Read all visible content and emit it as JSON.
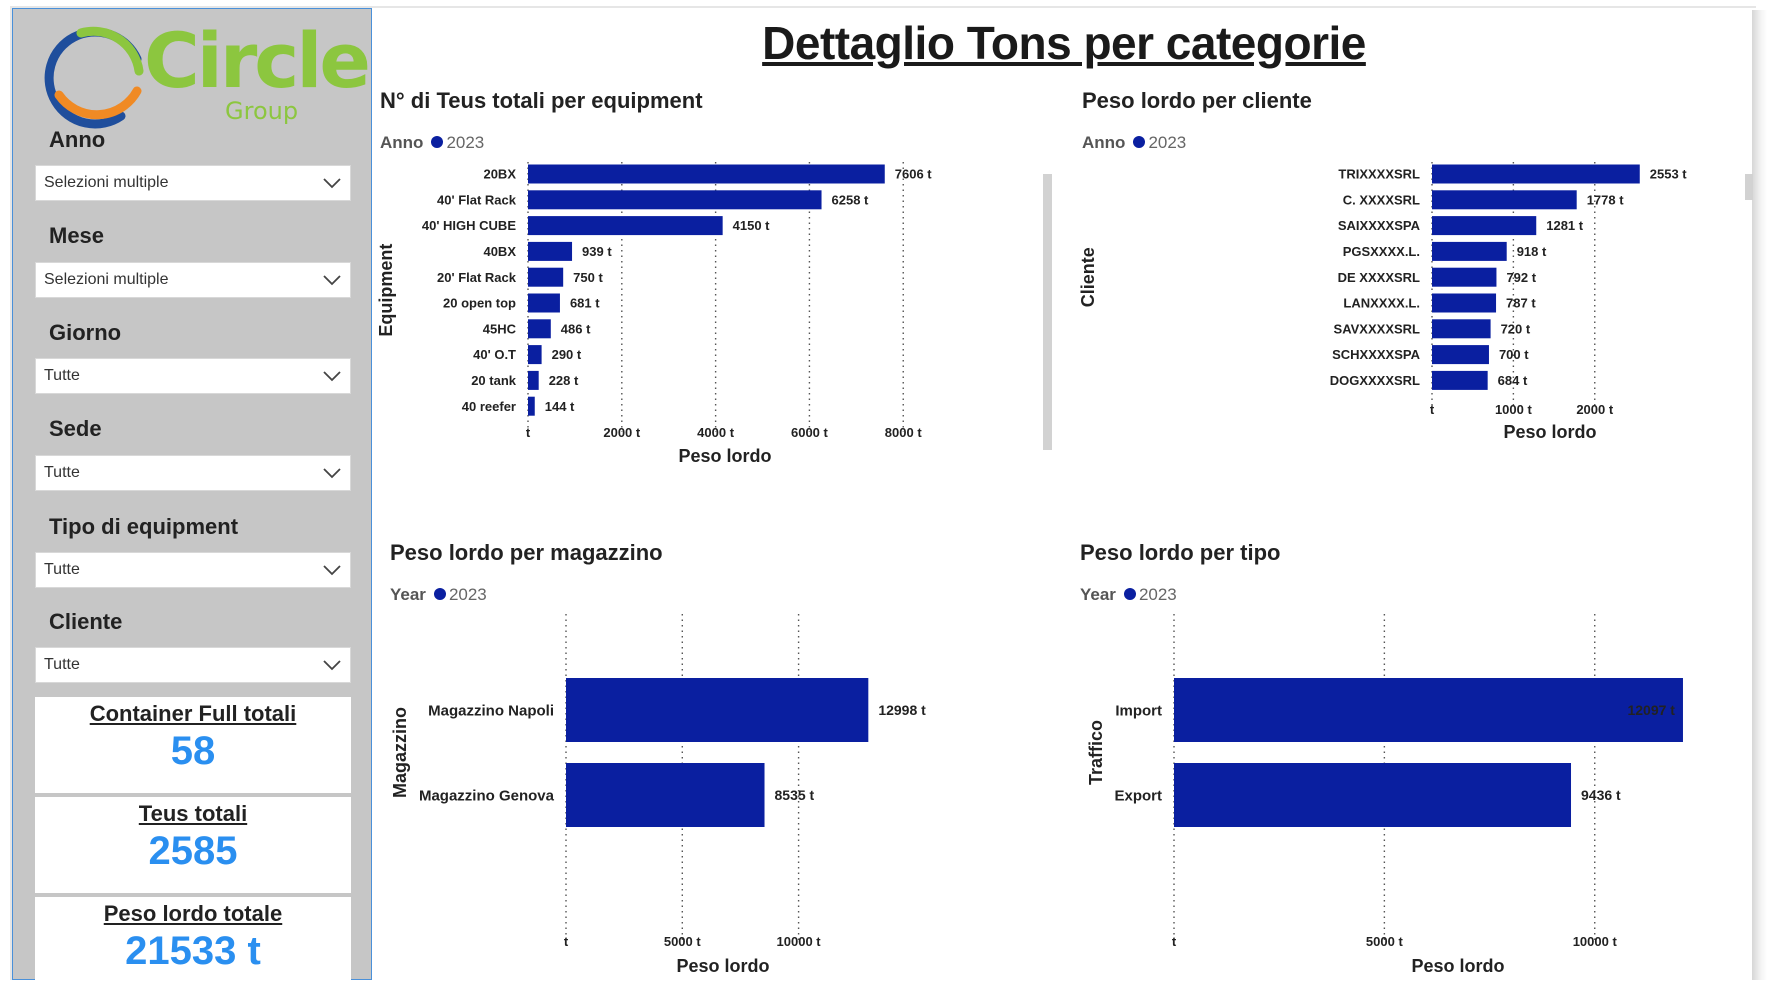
{
  "logo": {
    "name": "Circle",
    "sub": "Group"
  },
  "page_title": "Dettaglio Tons per categorie",
  "filters": [
    {
      "label": "Anno",
      "value": "Selezioni multiple"
    },
    {
      "label": "Mese",
      "value": "Selezioni multiple"
    },
    {
      "label": "Giorno",
      "value": "Tutte"
    },
    {
      "label": "Sede",
      "value": "Tutte"
    },
    {
      "label": "Tipo di equipment",
      "value": "Tutte"
    },
    {
      "label": "Cliente",
      "value": "Tutte"
    }
  ],
  "cards": [
    {
      "title": "Container Full totali",
      "value": "58"
    },
    {
      "title": "Teus totali",
      "value": "2585"
    },
    {
      "title": "Peso lordo totale",
      "value": "21533 t"
    }
  ],
  "colors": {
    "bar": "#0a1fa0",
    "card_value": "#2a8ff0",
    "sidebar": "#c6c6c6"
  },
  "chart_data": [
    {
      "type": "bar",
      "orientation": "horizontal",
      "title": "N° di Teus totali per equipment",
      "legend": {
        "label": "Anno",
        "entries": [
          "2023"
        ],
        "placement": "top-left"
      },
      "categories": [
        "20BX",
        "40' Flat Rack",
        "40' HIGH CUBE",
        "40BX",
        "20' Flat Rack",
        "20 open top",
        "45HC",
        "40' O.T",
        "20 tank",
        "40 reefer"
      ],
      "series": [
        {
          "name": "2023",
          "values": [
            7606,
            6258,
            4150,
            939,
            750,
            681,
            486,
            290,
            228,
            144
          ]
        }
      ],
      "data_labels": [
        "7606 t",
        "6258 t",
        "4150 t",
        "939 t",
        "750 t",
        "681 t",
        "486 t",
        "290 t",
        "228 t",
        "144 t"
      ],
      "xlabel": "Peso lordo",
      "ylabel": "Equipment",
      "xticks": [
        0,
        2000,
        4000,
        6000,
        8000
      ],
      "xtick_labels": [
        "t",
        "2000 t",
        "4000 t",
        "6000 t",
        "8000 t"
      ],
      "xlim": [
        0,
        8400
      ],
      "grid": "vertical dotted"
    },
    {
      "type": "bar",
      "orientation": "horizontal",
      "title": "Peso lordo per cliente",
      "legend": {
        "label": "Anno",
        "entries": [
          "2023"
        ],
        "placement": "top-left"
      },
      "categories": [
        "TRIXXXXSRL",
        "C. XXXXSRL",
        "SAIXXXXSPA",
        "PGSXXXX.L.",
        "DE XXXXSRL",
        "LANXXXX.L.",
        "SAVXXXXSRL",
        "SCHXXXXSPA",
        "DOGXXXXSRL"
      ],
      "series": [
        {
          "name": "2023",
          "values": [
            2553,
            1778,
            1281,
            918,
            792,
            787,
            720,
            700,
            684
          ]
        }
      ],
      "data_labels": [
        "2553 t",
        "1778 t",
        "1281 t",
        "918 t",
        "792 t",
        "787 t",
        "720 t",
        "700 t",
        "684 t"
      ],
      "xlabel": "Peso lordo",
      "ylabel": "Cliente",
      "xticks": [
        0,
        1000,
        2000
      ],
      "xtick_labels": [
        "t",
        "1000 t",
        "2000 t"
      ],
      "xlim": [
        0,
        2900
      ],
      "grid": "vertical dotted"
    },
    {
      "type": "bar",
      "orientation": "horizontal",
      "title": "Peso lordo per magazzino",
      "legend": {
        "label": "Year",
        "entries": [
          "2023"
        ],
        "placement": "top-left"
      },
      "categories": [
        "Magazzino Napoli",
        "Magazzino Genova"
      ],
      "series": [
        {
          "name": "2023",
          "values": [
            12998,
            8535
          ]
        }
      ],
      "data_labels": [
        "12998 t",
        "8535 t"
      ],
      "xlabel": "Peso lordo",
      "ylabel": "Magazzino",
      "xticks": [
        0,
        5000,
        10000
      ],
      "xtick_labels": [
        "t",
        "5000 t",
        "10000 t"
      ],
      "xlim": [
        0,
        13500
      ],
      "grid": "vertical dotted"
    },
    {
      "type": "bar",
      "orientation": "horizontal",
      "title": "Peso lordo per tipo",
      "legend": {
        "label": "Year",
        "entries": [
          "2023"
        ],
        "placement": "top-left"
      },
      "categories": [
        "Import",
        "Export"
      ],
      "series": [
        {
          "name": "2023",
          "values": [
            12097,
            9436
          ]
        }
      ],
      "data_labels": [
        "12097 t",
        "9436 t"
      ],
      "xlabel": "Peso lordo",
      "ylabel": "Traffico",
      "xticks": [
        0,
        5000,
        10000
      ],
      "xtick_labels": [
        "t",
        "5000 t",
        "10000 t"
      ],
      "xlim": [
        0,
        13500
      ],
      "grid": "vertical dotted"
    }
  ]
}
